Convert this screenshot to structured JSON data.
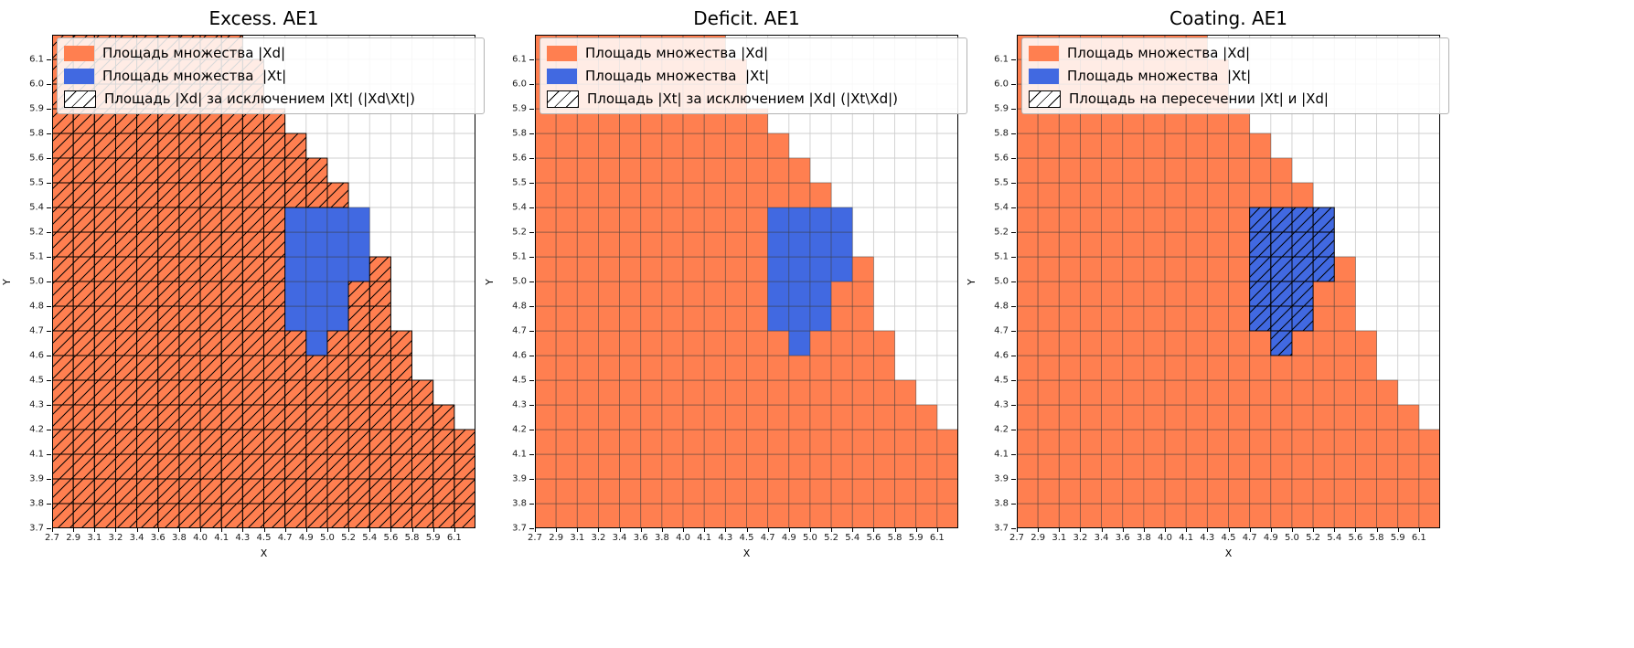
{
  "charts": [
    {
      "title": "Excess. AE1",
      "hatch": "xd_only",
      "legend": [
        {
          "name": "xd-swatch",
          "label": "Площадь множества |Xd|"
        },
        {
          "name": "xt-swatch",
          "label": "Площадь множества  |Xt|"
        },
        {
          "name": "hatch-swatch",
          "label": "Площадь |Xd| за исключением |Xt| (|Xd\\Xt|)"
        }
      ]
    },
    {
      "title": "Deficit. AE1",
      "hatch": "xt_only",
      "legend": [
        {
          "name": "xd-swatch",
          "label": "Площадь множества |Xd|"
        },
        {
          "name": "xt-swatch",
          "label": "Площадь множества  |Xt|"
        },
        {
          "name": "hatch-swatch",
          "label": "Площадь |Xt| за исключением |Xd| (|Xt\\Xd|)"
        }
      ]
    },
    {
      "title": "Coating. AE1",
      "hatch": "intersection",
      "legend": [
        {
          "name": "xd-swatch",
          "label": "Площадь множества |Xd|"
        },
        {
          "name": "xt-swatch",
          "label": "Площадь множества  |Xt|"
        },
        {
          "name": "hatch-swatch",
          "label": "Площадь на пересечении |Xt| и |Xd|"
        }
      ]
    }
  ],
  "chart_data": {
    "type": "heatmap",
    "xlabel": "X",
    "ylabel": "Y",
    "x_ticks": [
      "2.7",
      "2.9",
      "3.1",
      "3.2",
      "3.4",
      "3.6",
      "3.8",
      "4.0",
      "4.1",
      "4.3",
      "4.5",
      "4.7",
      "4.9",
      "5.0",
      "5.2",
      "5.4",
      "5.6",
      "5.8",
      "5.9",
      "6.1"
    ],
    "y_ticks": [
      "3.7",
      "3.8",
      "3.9",
      "4.1",
      "4.2",
      "4.3",
      "4.5",
      "4.6",
      "4.7",
      "4.8",
      "5.0",
      "5.1",
      "5.2",
      "5.4",
      "5.5",
      "5.6",
      "5.8",
      "5.9",
      "6.0",
      "6.1"
    ],
    "grid": {
      "cols": 20,
      "rows": 20,
      "note": "rows indexed bottom-to-top; filled region |Xd|∪|Xt| spans columns 0..max per row; |Xt| given as [minCol,maxCol] per row",
      "filled_max_col_by_row": [
        19,
        19,
        19,
        19,
        18,
        17,
        16,
        16,
        15,
        15,
        15,
        14,
        14,
        13,
        12,
        11,
        10,
        9,
        9,
        8
      ],
      "xt_col_range_by_row": {
        "7": [
          12,
          12
        ],
        "8": [
          11,
          13
        ],
        "9": [
          11,
          13
        ],
        "10": [
          11,
          14
        ],
        "11": [
          11,
          14
        ],
        "12": [
          11,
          14
        ]
      }
    },
    "colors": {
      "xd": "#FF7F50",
      "xt": "#4169E1",
      "grid_line": "#cfcfcf",
      "cell_edge": "#3a3a3a",
      "hatch_line": "#000000",
      "spine": "#000000"
    },
    "legend_position": "upper left",
    "grid_on": true
  }
}
